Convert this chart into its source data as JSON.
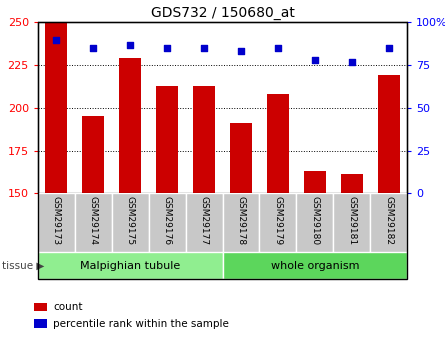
{
  "title": "GDS732 / 150680_at",
  "categories": [
    "GSM29173",
    "GSM29174",
    "GSM29175",
    "GSM29176",
    "GSM29177",
    "GSM29178",
    "GSM29179",
    "GSM29180",
    "GSM29181",
    "GSM29182"
  ],
  "counts": [
    250,
    195,
    229,
    213,
    213,
    191,
    208,
    163,
    161,
    219
  ],
  "percentile": [
    90,
    85,
    87,
    85,
    85,
    83,
    85,
    78,
    77,
    85
  ],
  "tissue_groups": [
    {
      "label": "Malpighian tubule",
      "start": 0,
      "end": 5,
      "color": "#90EE90"
    },
    {
      "label": "whole organism",
      "start": 5,
      "end": 10,
      "color": "#5CD65C"
    }
  ],
  "bar_color": "#CC0000",
  "dot_color": "#0000CC",
  "ylim_left": [
    150,
    250
  ],
  "ylim_right": [
    0,
    100
  ],
  "yticks_left": [
    150,
    175,
    200,
    225,
    250
  ],
  "yticks_right": [
    0,
    25,
    50,
    75,
    100
  ],
  "background_color": "#ffffff",
  "bar_width": 0.6,
  "legend_items": [
    {
      "label": "count",
      "color": "#CC0000"
    },
    {
      "label": "percentile rank within the sample",
      "color": "#0000CC"
    }
  ],
  "tissue_label": "tissue",
  "label_box_color": "#C8C8C8",
  "fig_border_color": "#000000"
}
